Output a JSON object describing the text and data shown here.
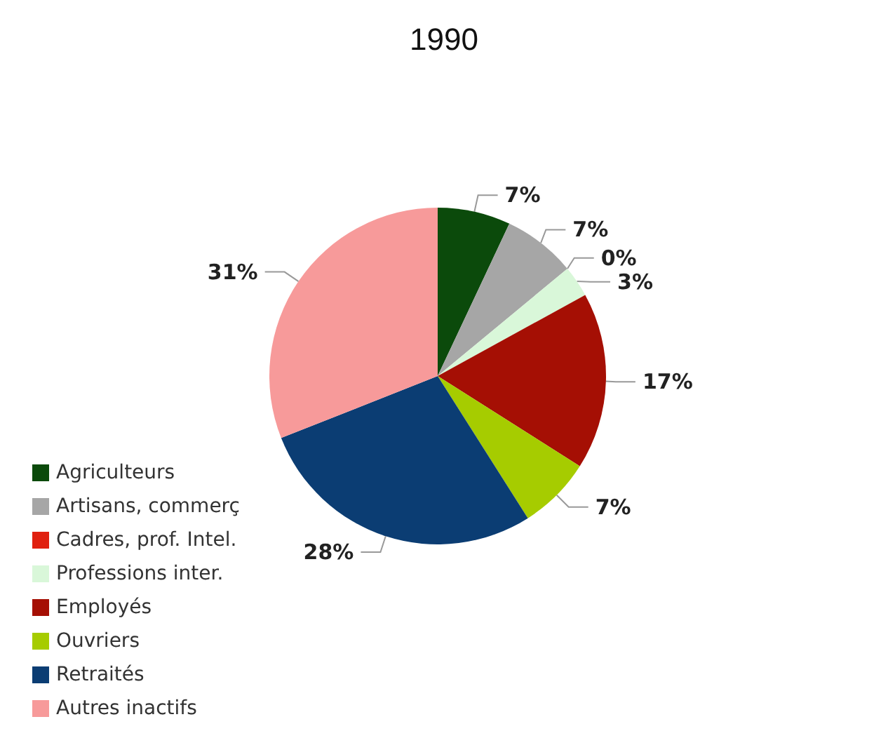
{
  "chart_data": {
    "type": "pie",
    "title": "1990",
    "categories": [
      "Agriculteurs",
      "Artisans, commerç",
      "Cadres, prof. Intel.",
      "Professions inter.",
      "Employés",
      "Ouvriers",
      "Retraités",
      "Autres inactifs"
    ],
    "values": [
      7,
      7,
      0,
      3,
      17,
      7,
      28,
      31
    ],
    "colors": [
      "#0b4a0b",
      "#a6a6a6",
      "#e0200f",
      "#d9f7d9",
      "#a50f04",
      "#a6cc00",
      "#0b3d73",
      "#f79a9a"
    ],
    "value_labels": [
      "7%",
      "7%",
      "0%",
      "3%",
      "17%",
      "7%",
      "28%",
      "31%"
    ],
    "legend": "bottom left"
  }
}
